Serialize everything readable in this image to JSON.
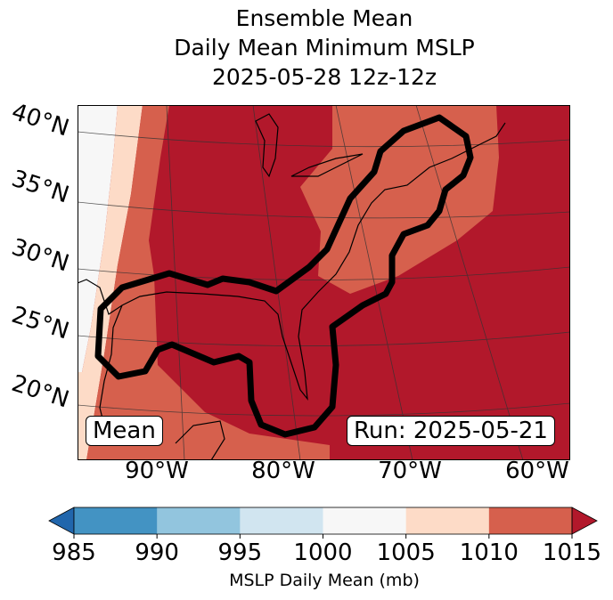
{
  "title": {
    "line1": "Ensemble Mean",
    "line2": "Daily Mean Minimum MSLP",
    "line3": "2025-05-28 12z-12z"
  },
  "map": {
    "lat_labels": [
      "40°N",
      "35°N",
      "30°N",
      "25°N",
      "20°N"
    ],
    "lon_labels": [
      "90°W",
      "80°W",
      "70°W",
      "60°W"
    ],
    "mean_label": "Mean",
    "run_label": "Run: 2025-05-21"
  },
  "colorbar": {
    "ticks": [
      "985",
      "990",
      "995",
      "1000",
      "1005",
      "1010",
      "1015"
    ],
    "label": "MSLP Daily Mean (mb)",
    "colors": [
      "#2166ac",
      "#4393c3",
      "#92c5de",
      "#d1e5f0",
      "#f7f7f7",
      "#fddbc7",
      "#d6604d",
      "#b2182b"
    ]
  }
}
